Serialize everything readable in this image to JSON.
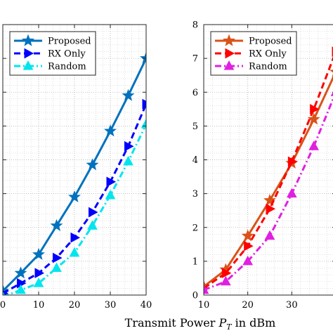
{
  "chart_data": [
    {
      "type": "line",
      "x": [
        0,
        5,
        10,
        15,
        20,
        25,
        30,
        35,
        40
      ],
      "xlim": [
        0,
        40
      ],
      "ylim": [
        0,
        8
      ],
      "xticks": [
        0,
        10,
        20,
        30,
        40
      ],
      "xtick_labels": [
        "0",
        "10",
        "20",
        "30",
        "40"
      ],
      "grid": true,
      "legend_position": "top-left",
      "series": [
        {
          "name": "Proposed",
          "color": "#0072BD",
          "marker": "star",
          "linestyle": "solid",
          "values": [
            0.12,
            0.65,
            1.2,
            2.05,
            2.9,
            3.85,
            4.85,
            5.9,
            7.0
          ]
        },
        {
          "name": "RX Only",
          "color": "#0000FF",
          "marker": "triangle-right",
          "linestyle": "dashed",
          "values": [
            0.05,
            0.35,
            0.65,
            1.1,
            1.7,
            2.45,
            3.35,
            4.4,
            5.65
          ]
        },
        {
          "name": "Random",
          "color": "#00E5EE",
          "marker": "triangle-up",
          "linestyle": "dashdot",
          "values": [
            -0.05,
            0.15,
            0.35,
            0.8,
            1.25,
            2.05,
            2.95,
            3.95,
            5.05
          ]
        }
      ]
    },
    {
      "type": "line",
      "x": [
        10,
        15,
        20,
        25,
        30,
        35,
        40
      ],
      "xlim": [
        10,
        40
      ],
      "ylim": [
        0,
        8
      ],
      "xticks": [
        10,
        20,
        30
      ],
      "xtick_labels": [
        "10",
        "20",
        "30"
      ],
      "yticks": [
        0,
        1,
        2,
        3,
        4,
        5,
        6,
        7,
        8
      ],
      "ytick_labels": [
        "0",
        "1",
        "2",
        "3",
        "4",
        "5",
        "6",
        "7",
        "8"
      ],
      "grid": true,
      "legend_position": "top-left",
      "series": [
        {
          "name": "Proposed",
          "color": "#D95319",
          "marker": "star",
          "linestyle": "solid",
          "values": [
            0.25,
            0.75,
            1.75,
            2.8,
            3.9,
            5.2,
            6.6
          ]
        },
        {
          "name": "RX Only",
          "color": "#FF0000",
          "marker": "triangle-right",
          "linestyle": "dashed",
          "values": [
            0.2,
            0.65,
            1.45,
            2.55,
            3.95,
            5.5,
            7.2
          ]
        },
        {
          "name": "Random",
          "color": "#E020E0",
          "marker": "triangle-up",
          "linestyle": "dashdot",
          "values": [
            0.15,
            0.4,
            1.0,
            1.75,
            3.0,
            4.4,
            6.0
          ]
        }
      ]
    }
  ],
  "shared_xlabel": "Transmit Power P_T in dBm",
  "shared_xlabel_parts": {
    "text": "Transmit Power ",
    "symbol": "P",
    "subscript": "T",
    "unit": " in dBm"
  }
}
